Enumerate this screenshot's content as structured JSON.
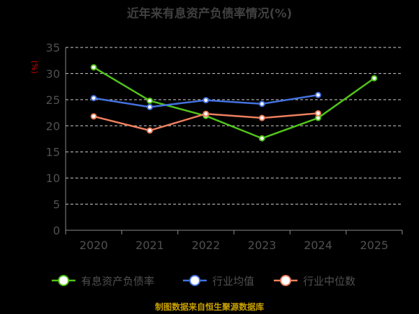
{
  "colors": {
    "background": "#000000",
    "series": [
      "#52c41a",
      "#4472e0",
      "#f08060"
    ]
  },
  "chart_data": {
    "type": "line",
    "title": "近年来有息资产负债率情况(%)",
    "ylabel": "(%)",
    "xlabel": "",
    "ylim": [
      0,
      35
    ],
    "yticks": [
      0,
      5,
      10,
      15,
      20,
      25,
      30,
      35
    ],
    "grid": true,
    "legend_placement": "bottom",
    "x": [
      "2020",
      "2021",
      "2022",
      "2023",
      "2024",
      "2025"
    ],
    "series": [
      {
        "name": "有息资产负债率",
        "values": [
          31.2,
          24.8,
          21.9,
          17.6,
          21.5,
          29.1
        ]
      },
      {
        "name": "行业均值",
        "values": [
          25.3,
          23.6,
          24.9,
          24.2,
          25.9,
          null
        ]
      },
      {
        "name": "行业中位数",
        "values": [
          21.8,
          19.1,
          22.3,
          21.5,
          22.4,
          null
        ]
      }
    ]
  },
  "footer": {
    "source": "制图数据来自恒生聚源数据库"
  }
}
